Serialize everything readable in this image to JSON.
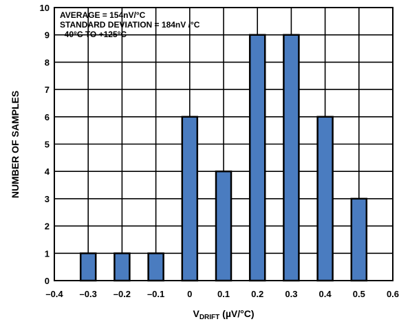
{
  "chart_data": {
    "type": "bar",
    "x": [
      -0.3,
      -0.2,
      -0.1,
      0,
      0.1,
      0.2,
      0.3,
      0.4,
      0.5
    ],
    "values": [
      1,
      1,
      1,
      6,
      4,
      9,
      9,
      6,
      3
    ],
    "xlim": [
      -0.4,
      0.6
    ],
    "ylim": [
      0,
      10
    ],
    "xticks": [
      "–0.4",
      "–0.3",
      "–0.2",
      "–0.1",
      "0",
      "0.1",
      "0.2",
      "0.3",
      "0.4",
      "0.5",
      "0.6"
    ],
    "yticks": [
      "0",
      "1",
      "2",
      "3",
      "4",
      "5",
      "6",
      "7",
      "8",
      "9",
      "10"
    ],
    "xlabel": {
      "main": "V",
      "subscript": "DRIFT",
      "unit": " (µV/°C)"
    },
    "ylabel": "NUMBER OF SAMPLES",
    "grid": true,
    "bar_color": "#4a7cc0",
    "annotations": [
      "AVERAGE = 154nV/°C",
      "STANDARD DEVIATION = 184nV /°C",
      "–40°C TO +125°C"
    ]
  }
}
